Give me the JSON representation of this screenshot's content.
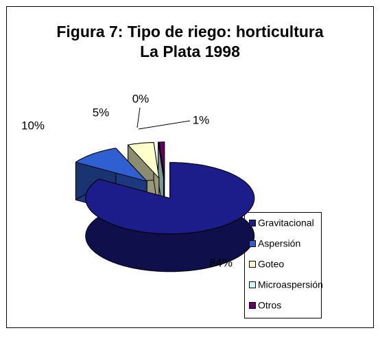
{
  "chart_data": {
    "type": "pie3d",
    "title": [
      "Figura 7: Tipo de riego: horticultura",
      "La Plata 1998"
    ],
    "categories": [
      "Gravitacional",
      "Aspersión",
      "Goteo",
      "Microaspersión",
      "Otros"
    ],
    "values": [
      84,
      10,
      5,
      0,
      1
    ],
    "value_labels": [
      "84%",
      "10%",
      "5%",
      "0%",
      "1%"
    ],
    "colors": [
      "#1c1c8a",
      "#2f5fd0",
      "#ffffcc",
      "#ccffff",
      "#660066"
    ],
    "legend": "right"
  }
}
